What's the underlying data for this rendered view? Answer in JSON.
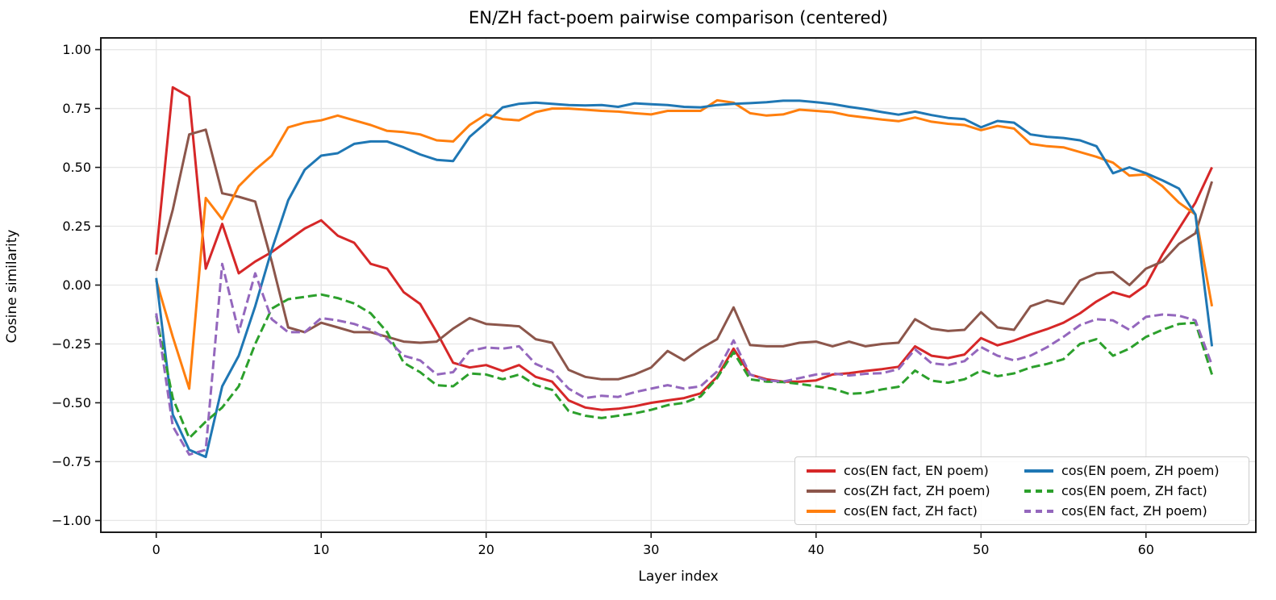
{
  "chart_data": {
    "type": "line",
    "title": "EN/ZH fact-poem pairwise comparison (centered)",
    "xlabel": "Layer index",
    "ylabel": "Cosine similarity",
    "x_start": 0,
    "x_step": 1,
    "xlim": [
      -3.36,
      66.66
    ],
    "ylim": [
      -1.05,
      1.05
    ],
    "xticks": [
      0,
      10,
      20,
      30,
      40,
      50,
      60
    ],
    "yticks": [
      {
        "value": 1.0,
        "label": "1.00"
      },
      {
        "value": 0.75,
        "label": "0.75"
      },
      {
        "value": 0.5,
        "label": "0.50"
      },
      {
        "value": 0.25,
        "label": "0.25"
      },
      {
        "value": 0.0,
        "label": "0.00"
      },
      {
        "value": -0.25,
        "label": "−0.25"
      },
      {
        "value": -0.5,
        "label": "−0.50"
      },
      {
        "value": -0.75,
        "label": "−0.75"
      },
      {
        "value": -1.0,
        "label": "−1.00"
      }
    ],
    "grid": true,
    "grid_color": "#e6e6e6",
    "spine_color": "#1a1a1a",
    "legend_position": "lower right",
    "legend_ncol": 2,
    "series": [
      {
        "name": "cos(EN fact, EN poem)",
        "color": "#d62728",
        "dashed": false,
        "values": [
          0.13,
          0.84,
          0.8,
          0.07,
          0.26,
          0.05,
          0.1,
          0.14,
          0.19,
          0.24,
          0.275,
          0.21,
          0.18,
          0.09,
          0.07,
          -0.03,
          -0.08,
          -0.2,
          -0.33,
          -0.35,
          -0.34,
          -0.365,
          -0.34,
          -0.39,
          -0.41,
          -0.49,
          -0.52,
          -0.53,
          -0.525,
          -0.515,
          -0.5,
          -0.49,
          -0.48,
          -0.46,
          -0.39,
          -0.27,
          -0.38,
          -0.4,
          -0.41,
          -0.41,
          -0.405,
          -0.38,
          -0.374,
          -0.365,
          -0.357,
          -0.347,
          -0.26,
          -0.3,
          -0.31,
          -0.295,
          -0.225,
          -0.256,
          -0.236,
          -0.21,
          -0.187,
          -0.16,
          -0.12,
          -0.07,
          -0.03,
          -0.05,
          0.0,
          0.13,
          0.24,
          0.35,
          0.5
        ]
      },
      {
        "name": "cos(ZH fact, ZH poem)",
        "color": "#8c564b",
        "dashed": false,
        "values": [
          0.06,
          0.32,
          0.64,
          0.66,
          0.39,
          0.375,
          0.355,
          0.1,
          -0.18,
          -0.2,
          -0.16,
          -0.18,
          -0.2,
          -0.2,
          -0.22,
          -0.24,
          -0.245,
          -0.24,
          -0.185,
          -0.14,
          -0.165,
          -0.17,
          -0.175,
          -0.23,
          -0.245,
          -0.36,
          -0.39,
          -0.4,
          -0.4,
          -0.38,
          -0.35,
          -0.28,
          -0.32,
          -0.27,
          -0.23,
          -0.095,
          -0.255,
          -0.26,
          -0.26,
          -0.245,
          -0.24,
          -0.26,
          -0.24,
          -0.26,
          -0.25,
          -0.245,
          -0.145,
          -0.185,
          -0.195,
          -0.19,
          -0.115,
          -0.18,
          -0.19,
          -0.09,
          -0.065,
          -0.08,
          0.02,
          0.05,
          0.055,
          0.0,
          0.07,
          0.1,
          0.175,
          0.22,
          0.44
        ]
      },
      {
        "name": "cos(EN fact, ZH fact)",
        "color": "#ff7f0e",
        "dashed": false,
        "values": [
          0.02,
          -0.22,
          -0.44,
          0.37,
          0.28,
          0.42,
          0.49,
          0.55,
          0.67,
          0.69,
          0.7,
          0.72,
          0.7,
          0.68,
          0.655,
          0.65,
          0.64,
          0.615,
          0.61,
          0.68,
          0.725,
          0.705,
          0.7,
          0.735,
          0.75,
          0.75,
          0.745,
          0.74,
          0.737,
          0.73,
          0.725,
          0.74,
          0.74,
          0.74,
          0.785,
          0.775,
          0.73,
          0.72,
          0.725,
          0.745,
          0.74,
          0.735,
          0.72,
          0.712,
          0.703,
          0.696,
          0.712,
          0.694,
          0.685,
          0.68,
          0.658,
          0.676,
          0.665,
          0.6,
          0.59,
          0.585,
          0.565,
          0.545,
          0.52,
          0.465,
          0.47,
          0.42,
          0.35,
          0.3,
          -0.09
        ]
      },
      {
        "name": "cos(EN poem, ZH poem)",
        "color": "#1f77b4",
        "dashed": false,
        "values": [
          0.03,
          -0.55,
          -0.7,
          -0.73,
          -0.43,
          -0.3,
          -0.09,
          0.15,
          0.36,
          0.49,
          0.55,
          0.56,
          0.6,
          0.61,
          0.61,
          0.585,
          0.555,
          0.532,
          0.527,
          0.63,
          0.69,
          0.755,
          0.77,
          0.775,
          0.77,
          0.765,
          0.763,
          0.765,
          0.757,
          0.772,
          0.768,
          0.765,
          0.757,
          0.755,
          0.765,
          0.77,
          0.773,
          0.777,
          0.783,
          0.783,
          0.777,
          0.769,
          0.757,
          0.747,
          0.735,
          0.724,
          0.737,
          0.722,
          0.71,
          0.705,
          0.67,
          0.697,
          0.69,
          0.64,
          0.63,
          0.625,
          0.615,
          0.59,
          0.475,
          0.5,
          0.475,
          0.445,
          0.41,
          0.3,
          -0.26
        ]
      },
      {
        "name": "cos(EN poem, ZH fact)",
        "color": "#2ca02c",
        "dashed": true,
        "values": [
          -0.13,
          -0.48,
          -0.65,
          -0.58,
          -0.52,
          -0.43,
          -0.25,
          -0.1,
          -0.06,
          -0.05,
          -0.04,
          -0.055,
          -0.078,
          -0.12,
          -0.2,
          -0.33,
          -0.37,
          -0.425,
          -0.43,
          -0.375,
          -0.38,
          -0.4,
          -0.38,
          -0.425,
          -0.445,
          -0.535,
          -0.555,
          -0.565,
          -0.555,
          -0.545,
          -0.53,
          -0.51,
          -0.5,
          -0.473,
          -0.395,
          -0.285,
          -0.4,
          -0.41,
          -0.412,
          -0.42,
          -0.43,
          -0.44,
          -0.462,
          -0.458,
          -0.443,
          -0.432,
          -0.363,
          -0.406,
          -0.415,
          -0.4,
          -0.363,
          -0.387,
          -0.375,
          -0.35,
          -0.335,
          -0.315,
          -0.25,
          -0.23,
          -0.3,
          -0.27,
          -0.22,
          -0.19,
          -0.165,
          -0.16,
          -0.38
        ]
      },
      {
        "name": "cos(EN fact, ZH poem)",
        "color": "#9467bd",
        "dashed": true,
        "values": [
          -0.12,
          -0.6,
          -0.72,
          -0.7,
          0.09,
          -0.2,
          0.05,
          -0.145,
          -0.2,
          -0.2,
          -0.14,
          -0.15,
          -0.165,
          -0.19,
          -0.23,
          -0.3,
          -0.32,
          -0.38,
          -0.37,
          -0.28,
          -0.265,
          -0.27,
          -0.26,
          -0.335,
          -0.365,
          -0.44,
          -0.48,
          -0.47,
          -0.475,
          -0.455,
          -0.44,
          -0.425,
          -0.44,
          -0.43,
          -0.367,
          -0.235,
          -0.38,
          -0.405,
          -0.41,
          -0.395,
          -0.38,
          -0.375,
          -0.384,
          -0.377,
          -0.374,
          -0.357,
          -0.273,
          -0.332,
          -0.34,
          -0.323,
          -0.263,
          -0.3,
          -0.32,
          -0.3,
          -0.264,
          -0.22,
          -0.17,
          -0.145,
          -0.15,
          -0.19,
          -0.135,
          -0.125,
          -0.13,
          -0.15,
          -0.34
        ]
      }
    ]
  }
}
